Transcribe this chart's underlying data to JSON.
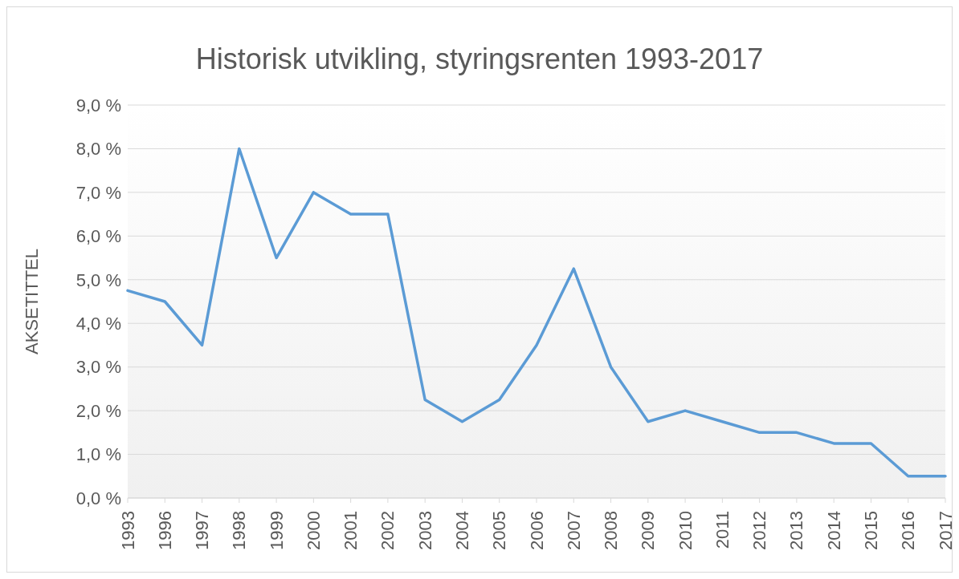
{
  "chart_data": {
    "type": "line",
    "title": "Historisk utvikling, styringsrenten 1993-2017",
    "ylabel": "AKSETITTEL",
    "categories": [
      "1993",
      "1996",
      "1997",
      "1998",
      "1999",
      "2000",
      "2001",
      "2002",
      "2003",
      "2004",
      "2005",
      "2006",
      "2007",
      "2008",
      "2009",
      "2010",
      "2011",
      "2012",
      "2013",
      "2014",
      "2015",
      "2016",
      "2017"
    ],
    "series": [
      {
        "color": "#5b9bd5",
        "values": [
          4.75,
          4.5,
          3.5,
          8.0,
          5.5,
          7.0,
          6.5,
          6.5,
          2.25,
          1.75,
          2.25,
          3.5,
          5.25,
          3.0,
          1.75,
          2.0,
          1.75,
          1.5,
          1.5,
          1.25,
          1.25,
          0.5,
          0.5
        ]
      }
    ],
    "ylim": [
      0,
      9
    ],
    "yticks": [
      {
        "value": 0,
        "label": "0,0 %"
      },
      {
        "value": 1,
        "label": "1,0 %"
      },
      {
        "value": 2,
        "label": "2,0 %"
      },
      {
        "value": 3,
        "label": "3,0 %"
      },
      {
        "value": 4,
        "label": "4,0 %"
      },
      {
        "value": 5,
        "label": "5,0 %"
      },
      {
        "value": 6,
        "label": "6,0 %"
      },
      {
        "value": 7,
        "label": "7,0 %"
      },
      {
        "value": 8,
        "label": "8,0 %"
      },
      {
        "value": 9,
        "label": "9,0 %"
      }
    ],
    "grid": "y",
    "legend": false,
    "marker": "none",
    "line_style": "solid"
  }
}
